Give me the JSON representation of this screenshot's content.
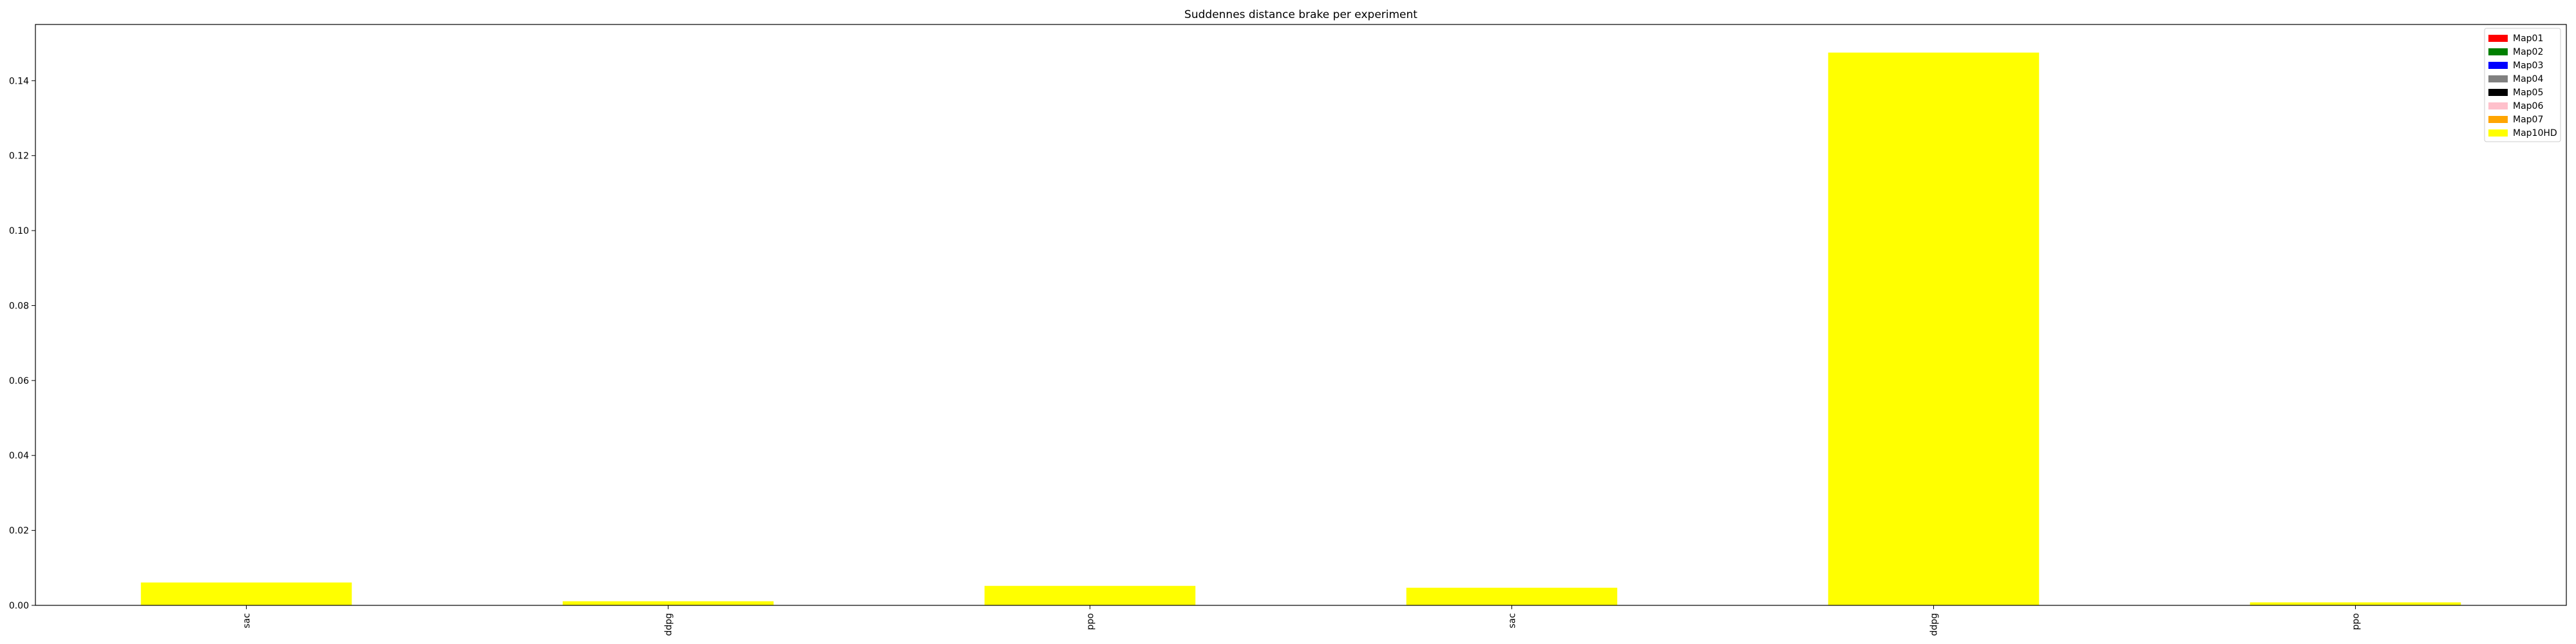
{
  "chart_data": {
    "type": "bar",
    "title": "Suddennes distance brake per experiment",
    "xlabel": "",
    "ylabel": "",
    "categories": [
      "sac",
      "ddpg",
      "ppo",
      "sac",
      "ddpg",
      "ppo"
    ],
    "ylim": [
      0,
      0.155
    ],
    "yticks": [
      0.0,
      0.02,
      0.04,
      0.06,
      0.08,
      0.1,
      0.12,
      0.14
    ],
    "ytick_labels": [
      "0.00",
      "0.02",
      "0.04",
      "0.06",
      "0.08",
      "0.10",
      "0.12",
      "0.14"
    ],
    "grid": false,
    "legend_position": "top-right",
    "stacked": true,
    "series": [
      {
        "name": "Map01",
        "color": "#ff0000",
        "values": [
          0,
          0,
          0,
          0,
          0,
          0
        ]
      },
      {
        "name": "Map02",
        "color": "#008000",
        "values": [
          0,
          0,
          0,
          0,
          0,
          0
        ]
      },
      {
        "name": "Map03",
        "color": "#0000ff",
        "values": [
          0,
          0,
          0,
          0,
          0,
          0
        ]
      },
      {
        "name": "Map04",
        "color": "#808080",
        "values": [
          0,
          0,
          0,
          0,
          0,
          0
        ]
      },
      {
        "name": "Map05",
        "color": "#000000",
        "values": [
          0,
          0,
          0,
          0,
          0,
          0
        ]
      },
      {
        "name": "Map06",
        "color": "#ffc0cb",
        "values": [
          0,
          0,
          0,
          0,
          0,
          0
        ]
      },
      {
        "name": "Map07",
        "color": "#ffa500",
        "values": [
          0,
          0,
          0,
          0,
          0,
          0
        ]
      },
      {
        "name": "Map10HD",
        "color": "#ffff00",
        "values": [
          0.0061,
          0.0011,
          0.0052,
          0.0047,
          0.1475,
          0.0008
        ]
      }
    ]
  }
}
